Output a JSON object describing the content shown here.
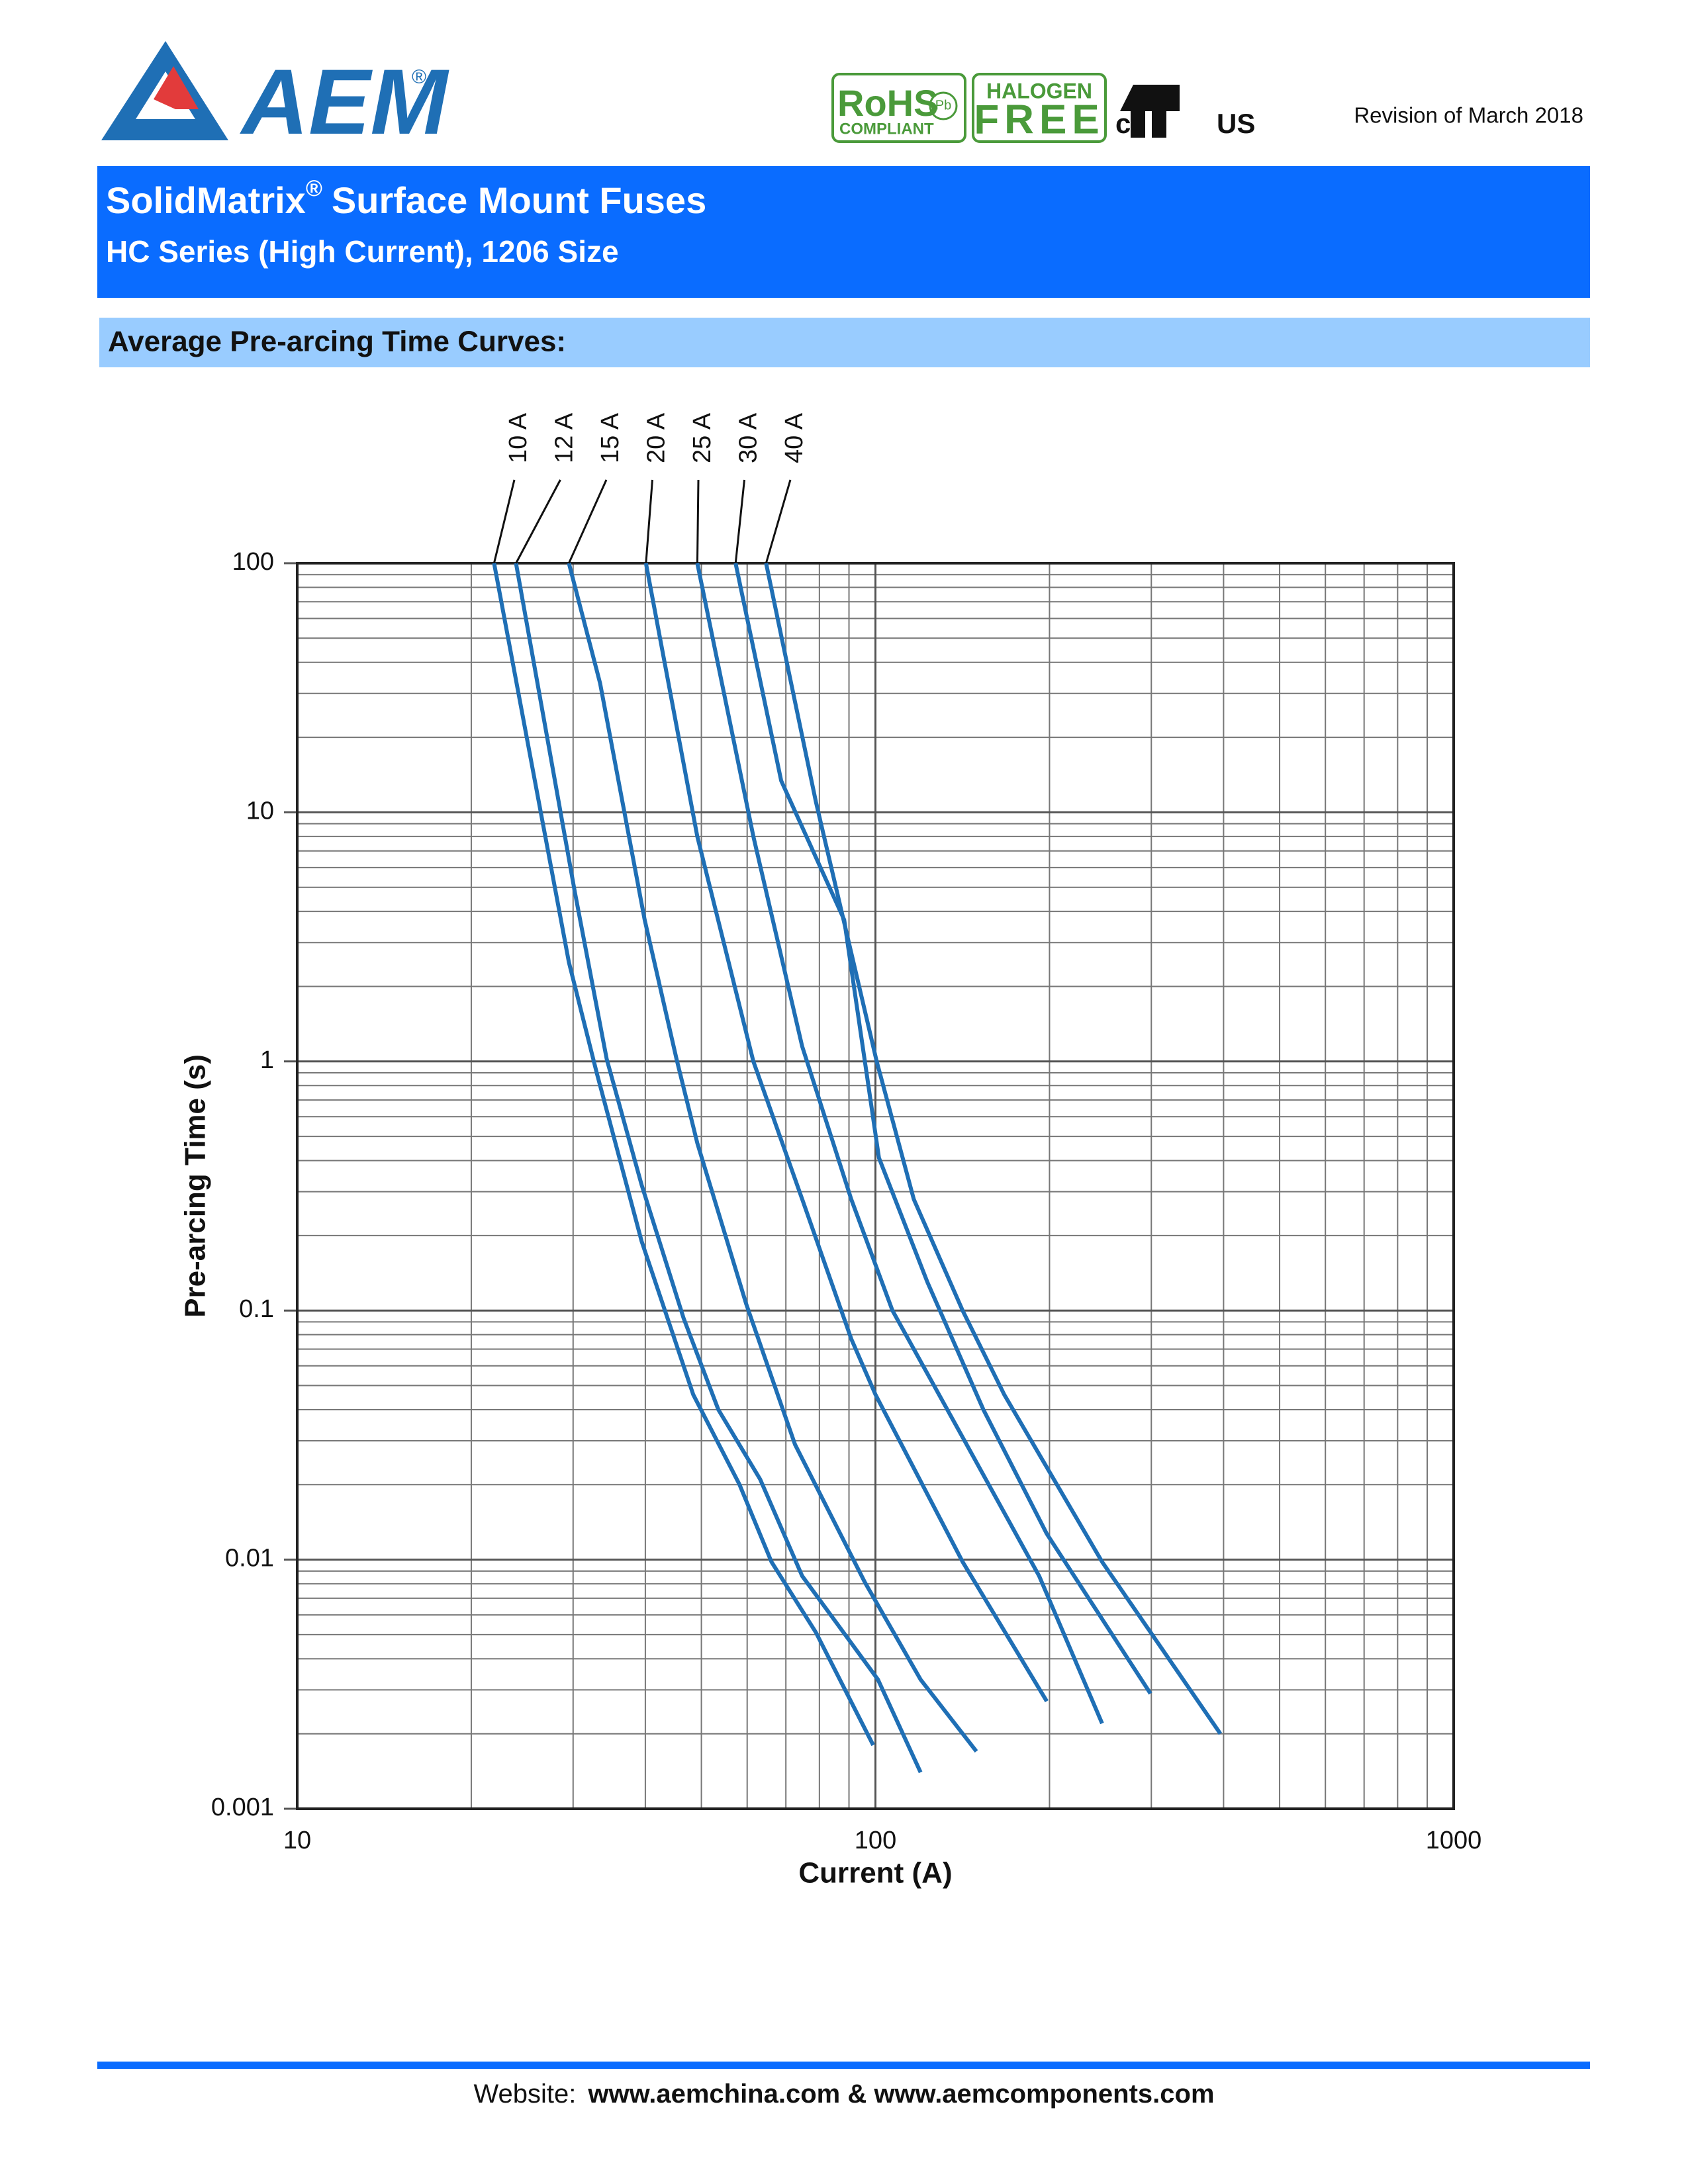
{
  "header": {
    "logo": "AEM",
    "logo_mark": "®",
    "badges": [
      "RoHS",
      "COMPLIANT",
      "Pb",
      "HALOGEN",
      "FREE",
      "c",
      "US"
    ],
    "revision": "Revision of March 2018",
    "title": "SolidMatrix",
    "title_mark": "®",
    "title_rest": "Surface Mount Fuses",
    "subtitle": "HC Series (High Current), 1206 Size",
    "section": "Average Pre-arcing Time Curves:"
  },
  "chart_data": {
    "type": "line",
    "xlabel": "Current (A)",
    "ylabel": "Pre-arcing Time (s)",
    "xscale": "log",
    "yscale": "log",
    "xlim": [
      10,
      1000
    ],
    "ylim": [
      0.001,
      100
    ],
    "xticks": [
      10,
      100,
      1000
    ],
    "yticks": [
      0.001,
      0.01,
      0.1,
      1,
      10,
      100
    ],
    "grid": true,
    "minor_grid": true,
    "series": [
      {
        "name": "10 A",
        "color": "#1f6fb5",
        "x": [
          21.9,
          29.5,
          33.0,
          39.4,
          48.4,
          58.2,
          66.1,
          78.9,
          99.1
        ],
        "values": [
          100,
          2.5,
          0.89,
          0.19,
          0.046,
          0.02,
          0.0098,
          0.0051,
          0.0018
        ]
      },
      {
        "name": "12 A",
        "color": "#1f6fb5",
        "x": [
          23.9,
          30.2,
          34.3,
          39.4,
          46.6,
          53.5,
          63.2,
          74.7,
          101,
          119.7
        ],
        "values": [
          100,
          4.8,
          1.02,
          0.32,
          0.093,
          0.04,
          0.021,
          0.0086,
          0.0033,
          0.0014
        ]
      },
      {
        "name": "15 A",
        "color": "#1f6fb5",
        "x": [
          29.5,
          33.4,
          39.9,
          45.3,
          49.2,
          59.8,
          72.6,
          95.9,
          119.7,
          149.5
        ],
        "values": [
          100,
          33,
          3.7,
          1.02,
          0.47,
          0.106,
          0.029,
          0.0081,
          0.0033,
          0.0017
        ]
      },
      {
        "name": "20 A",
        "color": "#1f6fb5",
        "x": [
          40.1,
          49.2,
          61.5,
          74.7,
          90.8,
          100,
          141.5,
          197.8
        ],
        "values": [
          100,
          8.0,
          1.0,
          0.28,
          0.077,
          0.046,
          0.0098,
          0.0027
        ]
      },
      {
        "name": "25 A",
        "color": "#1f6fb5",
        "x": [
          49.2,
          61.5,
          74.7,
          90.8,
          107,
          141.5,
          191.9,
          246.6
        ],
        "values": [
          100,
          8.0,
          1.15,
          0.28,
          0.1,
          0.031,
          0.0086,
          0.0022
        ]
      },
      {
        "name": "30 A",
        "color": "#1f6fb5",
        "x": [
          57.3,
          68.7,
          88.3,
          101.4,
          123,
          153.7,
          197.8,
          299
        ],
        "values": [
          100,
          13.4,
          3.7,
          0.41,
          0.13,
          0.04,
          0.0127,
          0.0029
        ]
      },
      {
        "name": "40 A",
        "color": "#1f6fb5",
        "x": [
          64.7,
          78.9,
          100.5,
          116.5,
          141.5,
          167,
          246.6,
          395
        ],
        "values": [
          100,
          11,
          1.0,
          0.28,
          0.1,
          0.046,
          0.0098,
          0.002
        ]
      }
    ]
  },
  "footer": {
    "prefix": "Website:",
    "sites": "www.aemchina.com & www.aemcomponents.com"
  }
}
